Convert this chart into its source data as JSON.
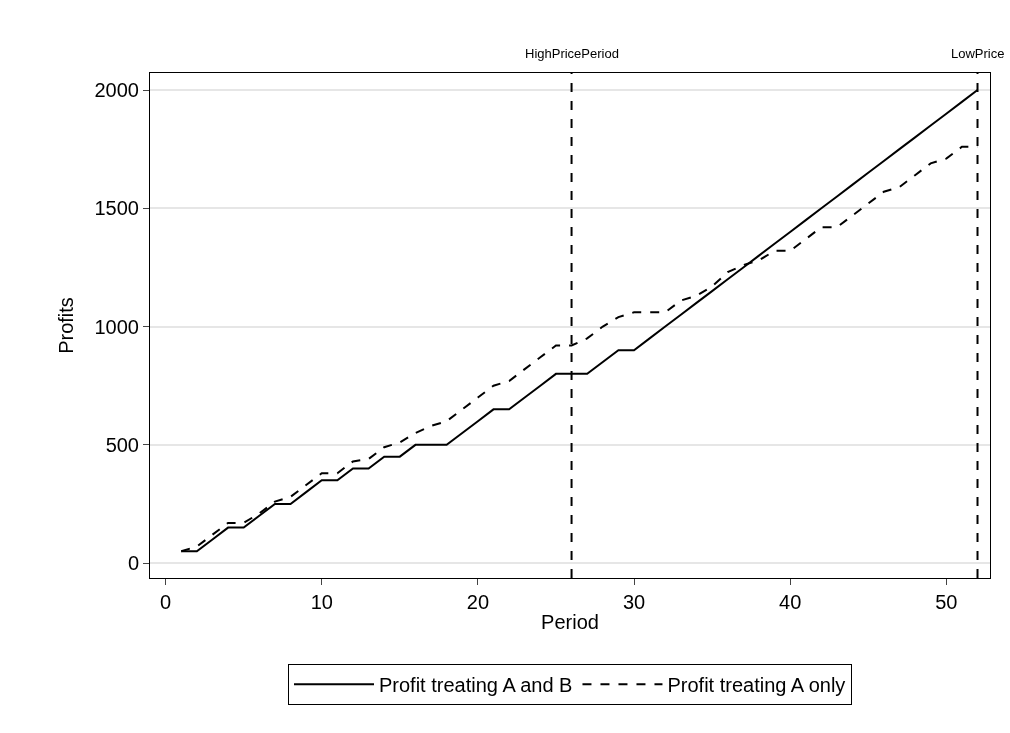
{
  "chart_data": {
    "type": "line",
    "xlabel": "Period",
    "ylabel": "Profits",
    "x": [
      1,
      2,
      3,
      4,
      5,
      6,
      7,
      8,
      9,
      10,
      11,
      12,
      13,
      14,
      15,
      16,
      17,
      18,
      19,
      20,
      21,
      22,
      23,
      24,
      25,
      26,
      27,
      28,
      29,
      30,
      31,
      32,
      33,
      34,
      35,
      36,
      37,
      38,
      39,
      40,
      41,
      42,
      43,
      44,
      45,
      46,
      47,
      48,
      49,
      50,
      51,
      52
    ],
    "series": [
      {
        "name": "Profit treating A and B",
        "color": "#000000",
        "line_style": "solid",
        "values": [
          50,
          50,
          100,
          150,
          150,
          200,
          250,
          250,
          300,
          350,
          350,
          400,
          400,
          450,
          450,
          500,
          500,
          500,
          550,
          600,
          650,
          650,
          700,
          750,
          800,
          800,
          800,
          850,
          900,
          900,
          950,
          1000,
          1050,
          1100,
          1150,
          1200,
          1250,
          1300,
          1350,
          1400,
          1450,
          1500,
          1550,
          1600,
          1650,
          1700,
          1750,
          1800,
          1850,
          1900,
          1950,
          2000
        ]
      },
      {
        "name": "Profit treating A only",
        "color": "#000000",
        "line_style": "dashed",
        "values": [
          50,
          70,
          120,
          170,
          170,
          210,
          260,
          280,
          330,
          380,
          380,
          430,
          440,
          490,
          510,
          550,
          580,
          600,
          650,
          700,
          750,
          770,
          820,
          870,
          920,
          920,
          950,
          1000,
          1040,
          1060,
          1060,
          1060,
          1110,
          1130,
          1170,
          1230,
          1260,
          1280,
          1320,
          1320,
          1370,
          1420,
          1420,
          1470,
          1520,
          1570,
          1590,
          1640,
          1690,
          1710,
          1760,
          1760
        ]
      }
    ],
    "xlim": [
      -1,
      52.8
    ],
    "xticks": [
      0,
      10,
      20,
      30,
      40,
      50
    ],
    "ylim": [
      -63,
      2072
    ],
    "yticks": [
      0,
      500,
      1000,
      1500,
      2000
    ],
    "grid": "y",
    "legend": "bottom",
    "marker": "none",
    "ref_lines": [
      {
        "axis": "x",
        "value": 26,
        "label": "HighPricePeriod",
        "color": "#000000",
        "line_style": "dashed"
      },
      {
        "axis": "x",
        "value": 52,
        "label": "LowPrice",
        "color": "#000000",
        "line_style": "dashed"
      }
    ]
  }
}
